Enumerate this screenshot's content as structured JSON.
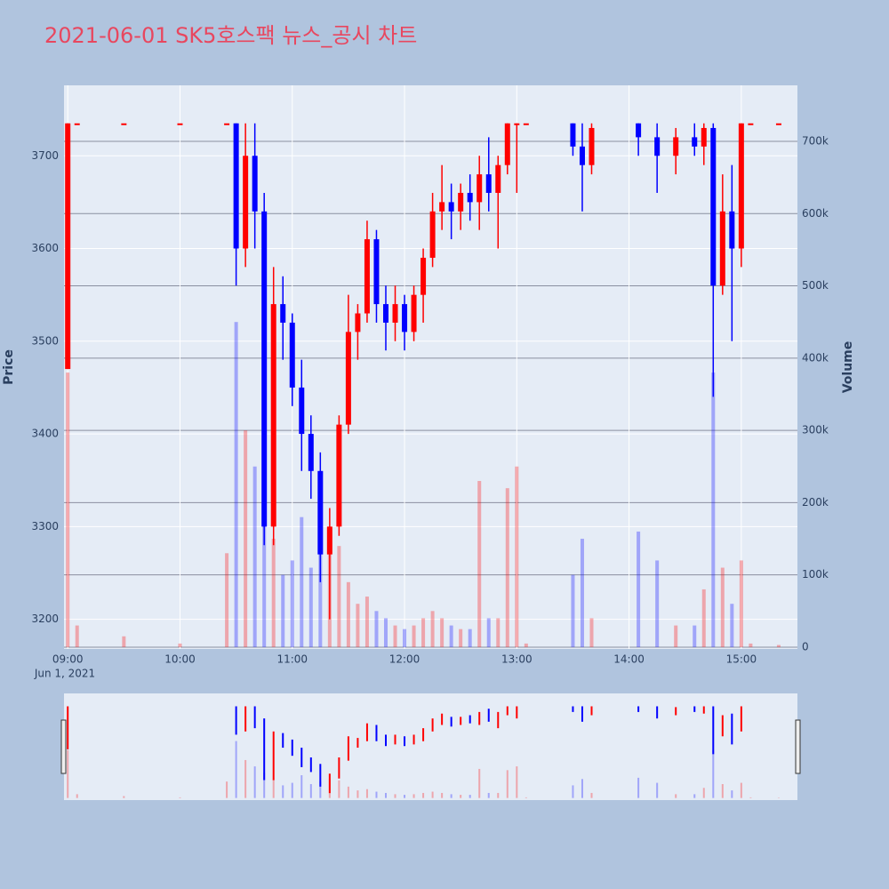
{
  "chart_data": {
    "type": "candlestick",
    "title": "2021-06-01 SK5호스팩 뉴스_공시 차트",
    "y_label": "Price",
    "y2_label": "Volume",
    "x_date_label": "Jun 1, 2021",
    "increasing_color": "#ff0000",
    "decreasing_color": "#0000ff",
    "x": [
      "09:00",
      "09:05",
      "09:30",
      "10:00",
      "10:25",
      "10:30",
      "10:35",
      "10:40",
      "10:45",
      "10:50",
      "10:55",
      "11:00",
      "11:05",
      "11:10",
      "11:15",
      "11:20",
      "11:25",
      "11:30",
      "11:35",
      "11:40",
      "11:45",
      "11:50",
      "11:55",
      "12:00",
      "12:05",
      "12:10",
      "12:15",
      "12:20",
      "12:25",
      "12:30",
      "12:35",
      "12:40",
      "12:45",
      "12:50",
      "12:55",
      "13:00",
      "13:05",
      "13:30",
      "13:35",
      "13:40",
      "14:05",
      "14:15",
      "14:25",
      "14:35",
      "14:40",
      "14:45",
      "14:50",
      "14:55",
      "15:00",
      "15:05",
      "15:20"
    ],
    "open": [
      3470,
      3735,
      3735,
      3735,
      3735,
      3735,
      3600,
      3700,
      3640,
      3300,
      3540,
      3520,
      3450,
      3400,
      3360,
      3270,
      3300,
      3410,
      3510,
      3530,
      3610,
      3540,
      3520,
      3540,
      3510,
      3550,
      3590,
      3640,
      3650,
      3640,
      3660,
      3650,
      3680,
      3660,
      3690,
      3735,
      3735,
      3735,
      3710,
      3690,
      3735,
      3720,
      3700,
      3720,
      3710,
      3730,
      3560,
      3640,
      3600,
      3735,
      3735
    ],
    "high": [
      3735,
      3735,
      3735,
      3735,
      3735,
      3735,
      3735,
      3735,
      3660,
      3580,
      3570,
      3530,
      3480,
      3420,
      3380,
      3320,
      3420,
      3550,
      3540,
      3630,
      3620,
      3560,
      3560,
      3550,
      3560,
      3600,
      3660,
      3690,
      3670,
      3670,
      3680,
      3700,
      3720,
      3700,
      3735,
      3735,
      3735,
      3735,
      3735,
      3735,
      3735,
      3735,
      3730,
      3735,
      3735,
      3735,
      3680,
      3690,
      3735,
      3735,
      3735
    ],
    "low": [
      3470,
      3735,
      3735,
      3735,
      3735,
      3560,
      3580,
      3600,
      3280,
      3280,
      3480,
      3430,
      3360,
      3330,
      3240,
      3200,
      3290,
      3400,
      3480,
      3520,
      3520,
      3490,
      3500,
      3490,
      3500,
      3520,
      3580,
      3620,
      3610,
      3620,
      3630,
      3620,
      3640,
      3600,
      3680,
      3660,
      3735,
      3700,
      3640,
      3680,
      3700,
      3660,
      3680,
      3700,
      3690,
      3440,
      3550,
      3500,
      3580,
      3735,
      3735
    ],
    "close": [
      3735,
      3735,
      3735,
      3735,
      3735,
      3600,
      3700,
      3640,
      3300,
      3540,
      3520,
      3450,
      3400,
      3360,
      3270,
      3300,
      3410,
      3510,
      3530,
      3610,
      3540,
      3520,
      3540,
      3510,
      3550,
      3590,
      3640,
      3650,
      3640,
      3660,
      3650,
      3680,
      3660,
      3690,
      3735,
      3735,
      3735,
      3710,
      3690,
      3730,
      3720,
      3700,
      3720,
      3710,
      3730,
      3560,
      3640,
      3600,
      3735,
      3735,
      3735
    ],
    "volume": [
      380000,
      30000,
      15000,
      5000,
      130000,
      450000,
      300000,
      250000,
      200000,
      150000,
      100000,
      120000,
      180000,
      110000,
      130000,
      150000,
      140000,
      90000,
      60000,
      70000,
      50000,
      40000,
      30000,
      25000,
      30000,
      40000,
      50000,
      40000,
      30000,
      25000,
      25000,
      230000,
      40000,
      40000,
      220000,
      250000,
      5000,
      100000,
      150000,
      40000,
      160000,
      120000,
      30000,
      30000,
      80000,
      380000,
      110000,
      60000,
      120000,
      5000,
      3000
    ],
    "xlim": [
      "08:58",
      "15:30"
    ],
    "xticks": [
      "09:00",
      "10:00",
      "11:00",
      "12:00",
      "13:00",
      "14:00",
      "15:00"
    ],
    "ylim": [
      3168,
      3776
    ],
    "yticks": [
      3200,
      3300,
      3400,
      3500,
      3600,
      3700
    ],
    "y2lim": [
      -2500,
      777500
    ],
    "y2ticks": [
      0,
      {
        "value": 100000,
        "label": "100k"
      },
      {
        "value": 200000,
        "label": "200k"
      },
      {
        "value": 300000,
        "label": "300k"
      },
      {
        "value": 400000,
        "label": "400k"
      },
      {
        "value": 500000,
        "label": "500k"
      },
      {
        "value": 600000,
        "label": "600k"
      },
      {
        "value": 700000,
        "label": "700k"
      }
    ]
  }
}
